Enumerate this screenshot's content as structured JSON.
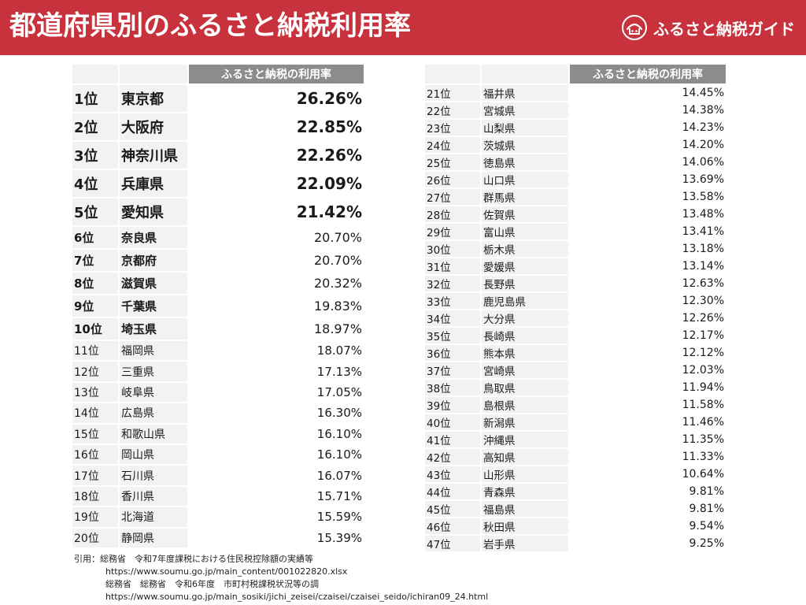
{
  "header": {
    "title": "都道府県別のふるさと納税利用率",
    "brand_name": "ふるさと納税ガイド"
  },
  "colors": {
    "header_bg": "#c8323c",
    "column_header_bg": "#8c8c8c",
    "row_bg": "#f2f2f2"
  },
  "left_table": {
    "column_header": "ふるさと納税の利用率",
    "rows": [
      {
        "rank": "1位",
        "prefecture": "東京都",
        "rate": "26.26%"
      },
      {
        "rank": "2位",
        "prefecture": "大阪府",
        "rate": "22.85%"
      },
      {
        "rank": "3位",
        "prefecture": "神奈川県",
        "rate": "22.26%"
      },
      {
        "rank": "4位",
        "prefecture": "兵庫県",
        "rate": "22.09%"
      },
      {
        "rank": "5位",
        "prefecture": "愛知県",
        "rate": "21.42%"
      },
      {
        "rank": "6位",
        "prefecture": "奈良県",
        "rate": "20.70%"
      },
      {
        "rank": "7位",
        "prefecture": "京都府",
        "rate": "20.70%"
      },
      {
        "rank": "8位",
        "prefecture": "滋賀県",
        "rate": "20.32%"
      },
      {
        "rank": "9位",
        "prefecture": "千葉県",
        "rate": "19.83%"
      },
      {
        "rank": "10位",
        "prefecture": "埼玉県",
        "rate": "18.97%"
      },
      {
        "rank": "11位",
        "prefecture": "福岡県",
        "rate": "18.07%"
      },
      {
        "rank": "12位",
        "prefecture": "三重県",
        "rate": "17.13%"
      },
      {
        "rank": "13位",
        "prefecture": "岐阜県",
        "rate": "17.05%"
      },
      {
        "rank": "14位",
        "prefecture": "広島県",
        "rate": "16.30%"
      },
      {
        "rank": "15位",
        "prefecture": "和歌山県",
        "rate": "16.10%"
      },
      {
        "rank": "16位",
        "prefecture": "岡山県",
        "rate": "16.10%"
      },
      {
        "rank": "17位",
        "prefecture": "石川県",
        "rate": "16.07%"
      },
      {
        "rank": "18位",
        "prefecture": "香川県",
        "rate": "15.71%"
      },
      {
        "rank": "19位",
        "prefecture": "北海道",
        "rate": "15.59%"
      },
      {
        "rank": "20位",
        "prefecture": "静岡県",
        "rate": "15.39%"
      }
    ]
  },
  "right_table": {
    "column_header": "ふるさと納税の利用率",
    "rows": [
      {
        "rank": "21位",
        "prefecture": "福井県",
        "rate": "14.45%"
      },
      {
        "rank": "22位",
        "prefecture": "宮城県",
        "rate": "14.38%"
      },
      {
        "rank": "23位",
        "prefecture": "山梨県",
        "rate": "14.23%"
      },
      {
        "rank": "24位",
        "prefecture": "茨城県",
        "rate": "14.20%"
      },
      {
        "rank": "25位",
        "prefecture": "徳島県",
        "rate": "14.06%"
      },
      {
        "rank": "26位",
        "prefecture": "山口県",
        "rate": "13.69%"
      },
      {
        "rank": "27位",
        "prefecture": "群馬県",
        "rate": "13.58%"
      },
      {
        "rank": "28位",
        "prefecture": "佐賀県",
        "rate": "13.48%"
      },
      {
        "rank": "29位",
        "prefecture": "富山県",
        "rate": "13.41%"
      },
      {
        "rank": "30位",
        "prefecture": "栃木県",
        "rate": "13.18%"
      },
      {
        "rank": "31位",
        "prefecture": "愛媛県",
        "rate": "13.14%"
      },
      {
        "rank": "32位",
        "prefecture": "長野県",
        "rate": "12.63%"
      },
      {
        "rank": "33位",
        "prefecture": "鹿児島県",
        "rate": "12.30%"
      },
      {
        "rank": "34位",
        "prefecture": "大分県",
        "rate": "12.26%"
      },
      {
        "rank": "35位",
        "prefecture": "長崎県",
        "rate": "12.17%"
      },
      {
        "rank": "36位",
        "prefecture": "熊本県",
        "rate": "12.12%"
      },
      {
        "rank": "37位",
        "prefecture": "宮崎県",
        "rate": "12.03%"
      },
      {
        "rank": "38位",
        "prefecture": "鳥取県",
        "rate": "11.94%"
      },
      {
        "rank": "39位",
        "prefecture": "島根県",
        "rate": "11.58%"
      },
      {
        "rank": "40位",
        "prefecture": "新潟県",
        "rate": "11.46%"
      },
      {
        "rank": "41位",
        "prefecture": "沖縄県",
        "rate": "11.35%"
      },
      {
        "rank": "42位",
        "prefecture": "高知県",
        "rate": "11.33%"
      },
      {
        "rank": "43位",
        "prefecture": "山形県",
        "rate": "10.64%"
      },
      {
        "rank": "44位",
        "prefecture": "青森県",
        "rate": "9.81%"
      },
      {
        "rank": "45位",
        "prefecture": "福島県",
        "rate": "9.81%"
      },
      {
        "rank": "46位",
        "prefecture": "秋田県",
        "rate": "9.54%"
      },
      {
        "rank": "47位",
        "prefecture": "岩手県",
        "rate": "9.25%"
      }
    ]
  },
  "source": {
    "line1": "引用：総務省　令和7年度課税における住民税控除額の実績等",
    "line2": "https://www.soumu.go.jp/main_content/001022820.xlsx",
    "line3": "総務省　総務省　令和6年度　市町村税課税状況等の調",
    "line4": "https://www.soumu.go.jp/main_sosiki/jichi_zeisei/czaisei/czaisei_seido/ichiran09_24.html"
  }
}
